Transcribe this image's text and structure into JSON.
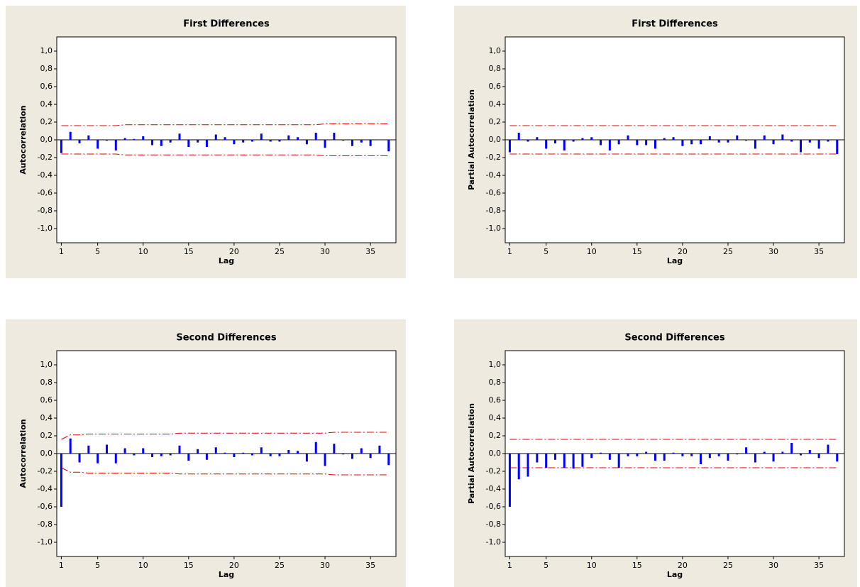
{
  "chart_data": [
    {
      "type": "bar",
      "title": "First Differences",
      "xlabel": "Lag",
      "ylabel": "Autocorrelation",
      "color": "#0000ff",
      "limit_color": "#e00000",
      "x": [
        1,
        2,
        3,
        4,
        5,
        6,
        7,
        8,
        9,
        10,
        11,
        12,
        13,
        14,
        15,
        16,
        17,
        18,
        19,
        20,
        21,
        22,
        23,
        24,
        25,
        26,
        27,
        28,
        29,
        30,
        31,
        32,
        33,
        34,
        35,
        36,
        37
      ],
      "values": [
        -0.15,
        0.09,
        -0.04,
        0.05,
        -0.1,
        -0.01,
        -0.12,
        0.02,
        0.01,
        0.04,
        -0.06,
        -0.07,
        -0.03,
        0.07,
        -0.08,
        -0.03,
        -0.08,
        0.06,
        0.03,
        -0.05,
        -0.03,
        -0.02,
        0.07,
        -0.02,
        -0.02,
        0.05,
        0.03,
        -0.05,
        0.08,
        -0.09,
        0.08,
        -0.01,
        -0.07,
        -0.03,
        -0.07,
        0.0,
        -0.13
      ],
      "upper_limit": [
        0.16,
        0.16,
        0.16,
        0.16,
        0.16,
        0.16,
        0.16,
        0.17,
        0.17,
        0.17,
        0.17,
        0.17,
        0.17,
        0.17,
        0.17,
        0.17,
        0.17,
        0.17,
        0.17,
        0.17,
        0.17,
        0.17,
        0.17,
        0.17,
        0.17,
        0.17,
        0.17,
        0.17,
        0.17,
        0.18,
        0.18,
        0.18,
        0.18,
        0.18,
        0.18,
        0.18,
        0.18
      ],
      "lower_limit": [
        -0.16,
        -0.16,
        -0.16,
        -0.16,
        -0.16,
        -0.16,
        -0.16,
        -0.17,
        -0.17,
        -0.17,
        -0.17,
        -0.17,
        -0.17,
        -0.17,
        -0.17,
        -0.17,
        -0.17,
        -0.17,
        -0.17,
        -0.17,
        -0.17,
        -0.17,
        -0.17,
        -0.17,
        -0.17,
        -0.17,
        -0.17,
        -0.17,
        -0.17,
        -0.18,
        -0.18,
        -0.18,
        -0.18,
        -0.18,
        -0.18,
        -0.18,
        -0.18
      ],
      "xlim": [
        0.5,
        37.8
      ],
      "xticks": [
        1,
        5,
        10,
        15,
        20,
        25,
        30,
        35
      ],
      "ylim": [
        -1.16,
        1.16
      ],
      "yticks": [
        {
          "value": -1.0,
          "label": "-1,0"
        },
        {
          "value": -0.8,
          "label": "-0,8"
        },
        {
          "value": -0.6,
          "label": "-0,6"
        },
        {
          "value": -0.4,
          "label": "-0,4"
        },
        {
          "value": -0.2,
          "label": "-0,2"
        },
        {
          "value": 0.0,
          "label": "0,0"
        },
        {
          "value": 0.2,
          "label": "0,2"
        },
        {
          "value": 0.4,
          "label": "0,4"
        },
        {
          "value": 0.6,
          "label": "0,6"
        },
        {
          "value": 0.8,
          "label": "0,8"
        },
        {
          "value": 1.0,
          "label": "1,0"
        }
      ]
    },
    {
      "type": "bar",
      "title": "First Differences",
      "xlabel": "Lag",
      "ylabel": "Partial Autocorrelation",
      "color": "#0000ff",
      "limit_color": "#e00000",
      "x": [
        1,
        2,
        3,
        4,
        5,
        6,
        7,
        8,
        9,
        10,
        11,
        12,
        13,
        14,
        15,
        16,
        17,
        18,
        19,
        20,
        21,
        22,
        23,
        24,
        25,
        26,
        27,
        28,
        29,
        30,
        31,
        32,
        33,
        34,
        35,
        36,
        37
      ],
      "values": [
        -0.14,
        0.08,
        -0.02,
        0.03,
        -0.1,
        -0.04,
        -0.12,
        -0.02,
        0.02,
        0.03,
        -0.06,
        -0.12,
        -0.05,
        0.05,
        -0.06,
        -0.06,
        -0.1,
        0.02,
        0.03,
        -0.07,
        -0.05,
        -0.05,
        0.04,
        -0.03,
        -0.03,
        0.05,
        -0.01,
        -0.1,
        0.05,
        -0.05,
        0.06,
        -0.02,
        -0.14,
        -0.03,
        -0.1,
        -0.02,
        -0.16
      ],
      "upper_limit": [
        0.16,
        0.16,
        0.16,
        0.16,
        0.16,
        0.16,
        0.16,
        0.16,
        0.16,
        0.16,
        0.16,
        0.16,
        0.16,
        0.16,
        0.16,
        0.16,
        0.16,
        0.16,
        0.16,
        0.16,
        0.16,
        0.16,
        0.16,
        0.16,
        0.16,
        0.16,
        0.16,
        0.16,
        0.16,
        0.16,
        0.16,
        0.16,
        0.16,
        0.16,
        0.16,
        0.16,
        0.16
      ],
      "lower_limit": [
        -0.16,
        -0.16,
        -0.16,
        -0.16,
        -0.16,
        -0.16,
        -0.16,
        -0.16,
        -0.16,
        -0.16,
        -0.16,
        -0.16,
        -0.16,
        -0.16,
        -0.16,
        -0.16,
        -0.16,
        -0.16,
        -0.16,
        -0.16,
        -0.16,
        -0.16,
        -0.16,
        -0.16,
        -0.16,
        -0.16,
        -0.16,
        -0.16,
        -0.16,
        -0.16,
        -0.16,
        -0.16,
        -0.16,
        -0.16,
        -0.16,
        -0.16,
        -0.16
      ],
      "xlim": [
        0.5,
        37.8
      ],
      "xticks": [
        1,
        5,
        10,
        15,
        20,
        25,
        30,
        35
      ],
      "ylim": [
        -1.16,
        1.16
      ],
      "yticks": [
        {
          "value": -1.0,
          "label": "-1,0"
        },
        {
          "value": -0.8,
          "label": "-0,8"
        },
        {
          "value": -0.6,
          "label": "-0,6"
        },
        {
          "value": -0.4,
          "label": "-0,4"
        },
        {
          "value": -0.2,
          "label": "-0,2"
        },
        {
          "value": 0.0,
          "label": "0,0"
        },
        {
          "value": 0.2,
          "label": "0,2"
        },
        {
          "value": 0.4,
          "label": "0,4"
        },
        {
          "value": 0.6,
          "label": "0,6"
        },
        {
          "value": 0.8,
          "label": "0,8"
        },
        {
          "value": 1.0,
          "label": "1,0"
        }
      ]
    },
    {
      "type": "bar",
      "title": "Second Differences",
      "xlabel": "Lag",
      "ylabel": "Autocorrelation",
      "color": "#0000ff",
      "limit_color": "#e00000",
      "x": [
        1,
        2,
        3,
        4,
        5,
        6,
        7,
        8,
        9,
        10,
        11,
        12,
        13,
        14,
        15,
        16,
        17,
        18,
        19,
        20,
        21,
        22,
        23,
        24,
        25,
        26,
        27,
        28,
        29,
        30,
        31,
        32,
        33,
        34,
        35,
        36,
        37
      ],
      "values": [
        -0.6,
        0.17,
        -0.1,
        0.09,
        -0.11,
        0.1,
        -0.11,
        0.06,
        -0.02,
        0.06,
        -0.04,
        -0.03,
        -0.02,
        0.09,
        -0.08,
        0.05,
        -0.07,
        0.07,
        0.01,
        -0.04,
        0.01,
        -0.02,
        0.07,
        -0.03,
        -0.03,
        0.04,
        0.03,
        -0.09,
        0.13,
        -0.14,
        0.11,
        -0.01,
        -0.06,
        0.06,
        -0.05,
        0.09,
        -0.13
      ],
      "upper_limit": [
        0.16,
        0.21,
        0.21,
        0.22,
        0.22,
        0.22,
        0.22,
        0.22,
        0.22,
        0.22,
        0.22,
        0.22,
        0.22,
        0.23,
        0.23,
        0.23,
        0.23,
        0.23,
        0.23,
        0.23,
        0.23,
        0.23,
        0.23,
        0.23,
        0.23,
        0.23,
        0.23,
        0.23,
        0.23,
        0.23,
        0.24,
        0.24,
        0.24,
        0.24,
        0.24,
        0.24,
        0.24
      ],
      "lower_limit": [
        -0.16,
        -0.21,
        -0.21,
        -0.22,
        -0.22,
        -0.22,
        -0.22,
        -0.22,
        -0.22,
        -0.22,
        -0.22,
        -0.22,
        -0.22,
        -0.23,
        -0.23,
        -0.23,
        -0.23,
        -0.23,
        -0.23,
        -0.23,
        -0.23,
        -0.23,
        -0.23,
        -0.23,
        -0.23,
        -0.23,
        -0.23,
        -0.23,
        -0.23,
        -0.23,
        -0.24,
        -0.24,
        -0.24,
        -0.24,
        -0.24,
        -0.24,
        -0.24
      ],
      "xlim": [
        0.5,
        37.8
      ],
      "xticks": [
        1,
        5,
        10,
        15,
        20,
        25,
        30,
        35
      ],
      "ylim": [
        -1.16,
        1.16
      ],
      "yticks": [
        {
          "value": -1.0,
          "label": "-1,0"
        },
        {
          "value": -0.8,
          "label": "-0,8"
        },
        {
          "value": -0.6,
          "label": "-0,6"
        },
        {
          "value": -0.4,
          "label": "-0,4"
        },
        {
          "value": -0.2,
          "label": "-0,2"
        },
        {
          "value": 0.0,
          "label": "0,0"
        },
        {
          "value": 0.2,
          "label": "0,2"
        },
        {
          "value": 0.4,
          "label": "0,4"
        },
        {
          "value": 0.6,
          "label": "0,6"
        },
        {
          "value": 0.8,
          "label": "0,8"
        },
        {
          "value": 1.0,
          "label": "1,0"
        }
      ]
    },
    {
      "type": "bar",
      "title": "Second Differences",
      "xlabel": "Lag",
      "ylabel": "Partial Autocorrelation",
      "color": "#0000ff",
      "limit_color": "#e00000",
      "x": [
        1,
        2,
        3,
        4,
        5,
        6,
        7,
        8,
        9,
        10,
        11,
        12,
        13,
        14,
        15,
        16,
        17,
        18,
        19,
        20,
        21,
        22,
        23,
        24,
        25,
        26,
        27,
        28,
        29,
        30,
        31,
        32,
        33,
        34,
        35,
        36,
        37
      ],
      "values": [
        -0.6,
        -0.29,
        -0.26,
        -0.1,
        -0.16,
        -0.07,
        -0.16,
        -0.17,
        -0.15,
        -0.05,
        0.01,
        -0.07,
        -0.16,
        -0.03,
        -0.03,
        0.02,
        -0.08,
        -0.08,
        0.01,
        -0.03,
        -0.03,
        -0.12,
        -0.05,
        -0.03,
        -0.08,
        -0.01,
        0.07,
        -0.1,
        0.02,
        -0.09,
        0.02,
        0.12,
        -0.02,
        0.04,
        -0.05,
        0.1,
        -0.09
      ],
      "upper_limit": [
        0.16,
        0.16,
        0.16,
        0.16,
        0.16,
        0.16,
        0.16,
        0.16,
        0.16,
        0.16,
        0.16,
        0.16,
        0.16,
        0.16,
        0.16,
        0.16,
        0.16,
        0.16,
        0.16,
        0.16,
        0.16,
        0.16,
        0.16,
        0.16,
        0.16,
        0.16,
        0.16,
        0.16,
        0.16,
        0.16,
        0.16,
        0.16,
        0.16,
        0.16,
        0.16,
        0.16,
        0.16
      ],
      "lower_limit": [
        -0.16,
        -0.16,
        -0.16,
        -0.16,
        -0.16,
        -0.16,
        -0.16,
        -0.16,
        -0.16,
        -0.16,
        -0.16,
        -0.16,
        -0.16,
        -0.16,
        -0.16,
        -0.16,
        -0.16,
        -0.16,
        -0.16,
        -0.16,
        -0.16,
        -0.16,
        -0.16,
        -0.16,
        -0.16,
        -0.16,
        -0.16,
        -0.16,
        -0.16,
        -0.16,
        -0.16,
        -0.16,
        -0.16,
        -0.16,
        -0.16,
        -0.16,
        -0.16
      ],
      "xlim": [
        0.5,
        37.8
      ],
      "xticks": [
        1,
        5,
        10,
        15,
        20,
        25,
        30,
        35
      ],
      "ylim": [
        -1.16,
        1.16
      ],
      "yticks": [
        {
          "value": -1.0,
          "label": "-1,0"
        },
        {
          "value": -0.8,
          "label": "-0,8"
        },
        {
          "value": -0.6,
          "label": "-0,6"
        },
        {
          "value": -0.4,
          "label": "-0,4"
        },
        {
          "value": -0.2,
          "label": "-0,2"
        },
        {
          "value": 0.0,
          "label": "0,0"
        },
        {
          "value": 0.2,
          "label": "0,2"
        },
        {
          "value": 0.4,
          "label": "0,4"
        },
        {
          "value": 0.6,
          "label": "0,6"
        },
        {
          "value": 0.8,
          "label": "0,8"
        },
        {
          "value": 1.0,
          "label": "1,0"
        }
      ]
    }
  ]
}
